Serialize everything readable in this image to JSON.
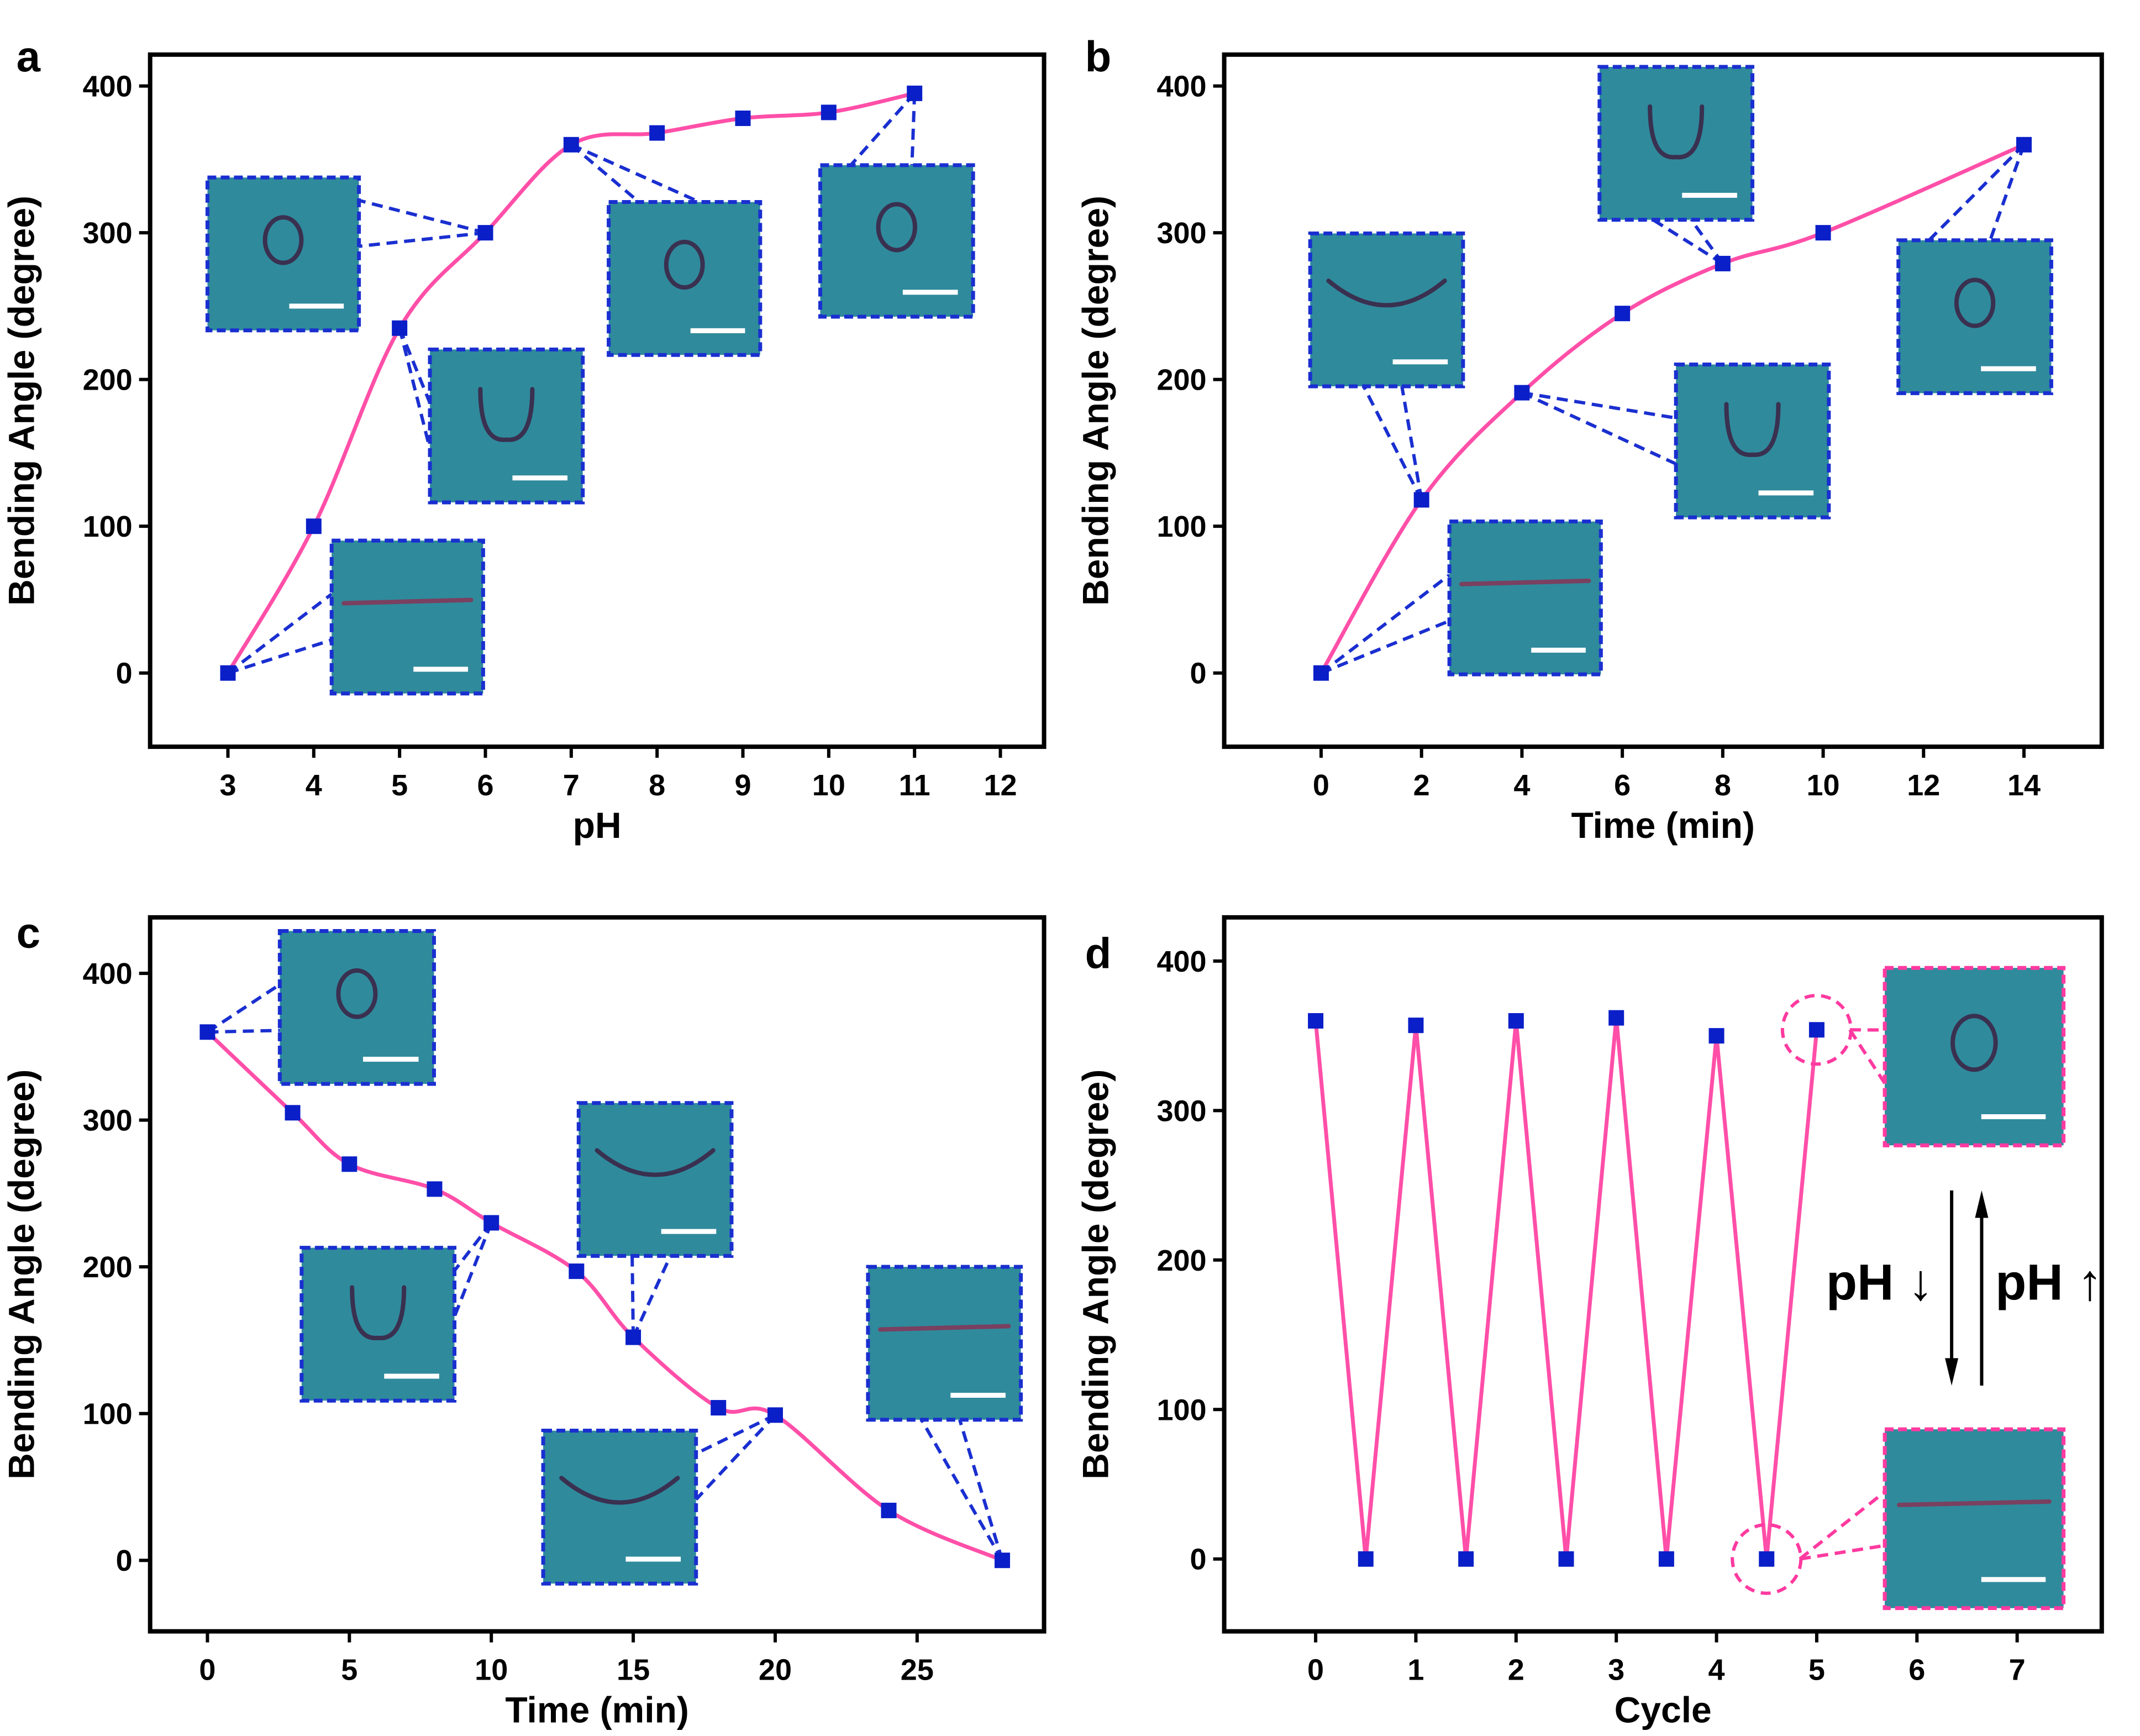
{
  "colors": {
    "line": "#ff4fa8",
    "marker": "#0a1fc8",
    "leader": "#1a2fd0",
    "inset_bg": "#2f8a9c",
    "inset_border_d": "#ff3aa0"
  },
  "chart_data": [
    {
      "panel": "a",
      "type": "line",
      "smooth": true,
      "xlabel": "pH",
      "ylabel": "Bending Angle (degree)",
      "xlim": [
        2.1,
        12.5
      ],
      "ylim": [
        -50,
        440
      ],
      "xticks": [
        "3",
        "4",
        "5",
        "6",
        "7",
        "8",
        "9",
        "10",
        "11",
        "12"
      ],
      "yticks": [
        "0",
        "100",
        "200",
        "300",
        "400"
      ],
      "x": [
        3,
        4,
        5,
        6,
        7,
        8,
        9,
        10,
        11
      ],
      "y": [
        0,
        100,
        235,
        300,
        360,
        368,
        378,
        382,
        395
      ]
    },
    {
      "panel": "b",
      "type": "line",
      "smooth": true,
      "xlabel": "Time (min)",
      "ylabel": "Bending Angle (degree)",
      "xlim": [
        -2.4,
        15.2
      ],
      "ylim": [
        -50,
        440
      ],
      "xticks": [
        "0",
        "2",
        "4",
        "6",
        "8",
        "10",
        "12",
        "14"
      ],
      "yticks": [
        "0",
        "100",
        "200",
        "300",
        "400"
      ],
      "x": [
        0,
        2,
        4,
        6,
        8,
        10,
        14
      ],
      "y": [
        0,
        118,
        191,
        245,
        279,
        300,
        360
      ]
    },
    {
      "panel": "c",
      "type": "line",
      "smooth": true,
      "xlabel": "Time (min)",
      "ylabel": "Bending Angle (degree)",
      "xlim": [
        -2,
        30
      ],
      "ylim": [
        -50,
        440
      ],
      "xticks": [
        "0",
        "5",
        "10",
        "15",
        "20",
        "25"
      ],
      "yticks": [
        "0",
        "100",
        "200",
        "300",
        "400"
      ],
      "x": [
        0,
        3,
        5,
        8,
        10,
        13,
        15,
        18,
        20,
        24,
        28
      ],
      "y": [
        360,
        305,
        270,
        253,
        230,
        197,
        152,
        104,
        99,
        34,
        0
      ]
    },
    {
      "panel": "d",
      "type": "line",
      "smooth": false,
      "xlabel": "Cycle",
      "ylabel": "Bending Angle (degree)",
      "xlim": [
        -0.9,
        7.9
      ],
      "ylim": [
        -50,
        440
      ],
      "xticks": [
        "0",
        "1",
        "2",
        "3",
        "4",
        "5",
        "6",
        "7"
      ],
      "yticks": [
        "0",
        "100",
        "200",
        "300",
        "400"
      ],
      "x": [
        0,
        0.5,
        1,
        1.5,
        2,
        2.5,
        3,
        3.5,
        4,
        4.5,
        5
      ],
      "y": [
        360,
        0,
        357,
        0,
        360,
        0,
        362,
        0,
        350,
        0,
        354
      ],
      "annotations": [
        "pH ↓",
        "pH ↑"
      ]
    }
  ]
}
